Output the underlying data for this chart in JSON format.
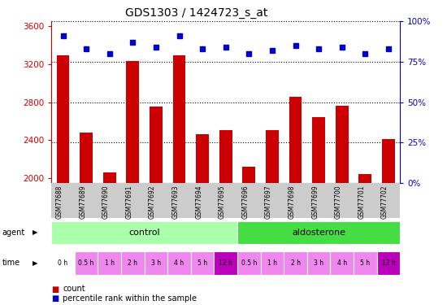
{
  "title": "GDS1303 / 1424723_s_at",
  "samples": [
    "GSM77688",
    "GSM77689",
    "GSM77690",
    "GSM77691",
    "GSM77692",
    "GSM77693",
    "GSM77694",
    "GSM77695",
    "GSM77696",
    "GSM77697",
    "GSM77698",
    "GSM77699",
    "GSM77700",
    "GSM77701",
    "GSM77702"
  ],
  "counts": [
    3290,
    2480,
    2060,
    3230,
    2750,
    3290,
    2460,
    2510,
    2120,
    2510,
    2860,
    2640,
    2760,
    2040,
    2410
  ],
  "percentiles": [
    91,
    83,
    80,
    87,
    84,
    91,
    83,
    84,
    80,
    82,
    85,
    83,
    84,
    80,
    83
  ],
  "ylim_left": [
    1950,
    3650
  ],
  "ylim_right": [
    0,
    100
  ],
  "yticks_left": [
    2000,
    2400,
    2800,
    3200,
    3600
  ],
  "yticks_right": [
    0,
    25,
    50,
    75,
    100
  ],
  "bar_color": "#cc0000",
  "dot_color": "#0000cc",
  "agent_control_label": "control",
  "agent_aldosterone_label": "aldosterone",
  "n_control": 8,
  "n_aldosterone": 7,
  "control_color": "#aaffaa",
  "aldosterone_color": "#44dd44",
  "time_labels": [
    "0 h",
    "0.5 h",
    "1 h",
    "2 h",
    "3 h",
    "4 h",
    "5 h",
    "12 h",
    "0.5 h",
    "1 h",
    "2 h",
    "3 h",
    "4 h",
    "5 h",
    "12 h"
  ],
  "time_colors": [
    "#ffffff",
    "#ee88ee",
    "#ee88ee",
    "#ee88ee",
    "#ee88ee",
    "#ee88ee",
    "#ee88ee",
    "#bb00bb",
    "#ee88ee",
    "#ee88ee",
    "#ee88ee",
    "#ee88ee",
    "#ee88ee",
    "#ee88ee",
    "#bb00bb"
  ],
  "bg_color": "#ffffff",
  "axis_color_left": "#cc0000",
  "axis_color_right": "#0000cc",
  "sample_box_color": "#cccccc",
  "legend_count_label": "count",
  "legend_pct_label": "percentile rank within the sample",
  "bar_width": 0.55
}
